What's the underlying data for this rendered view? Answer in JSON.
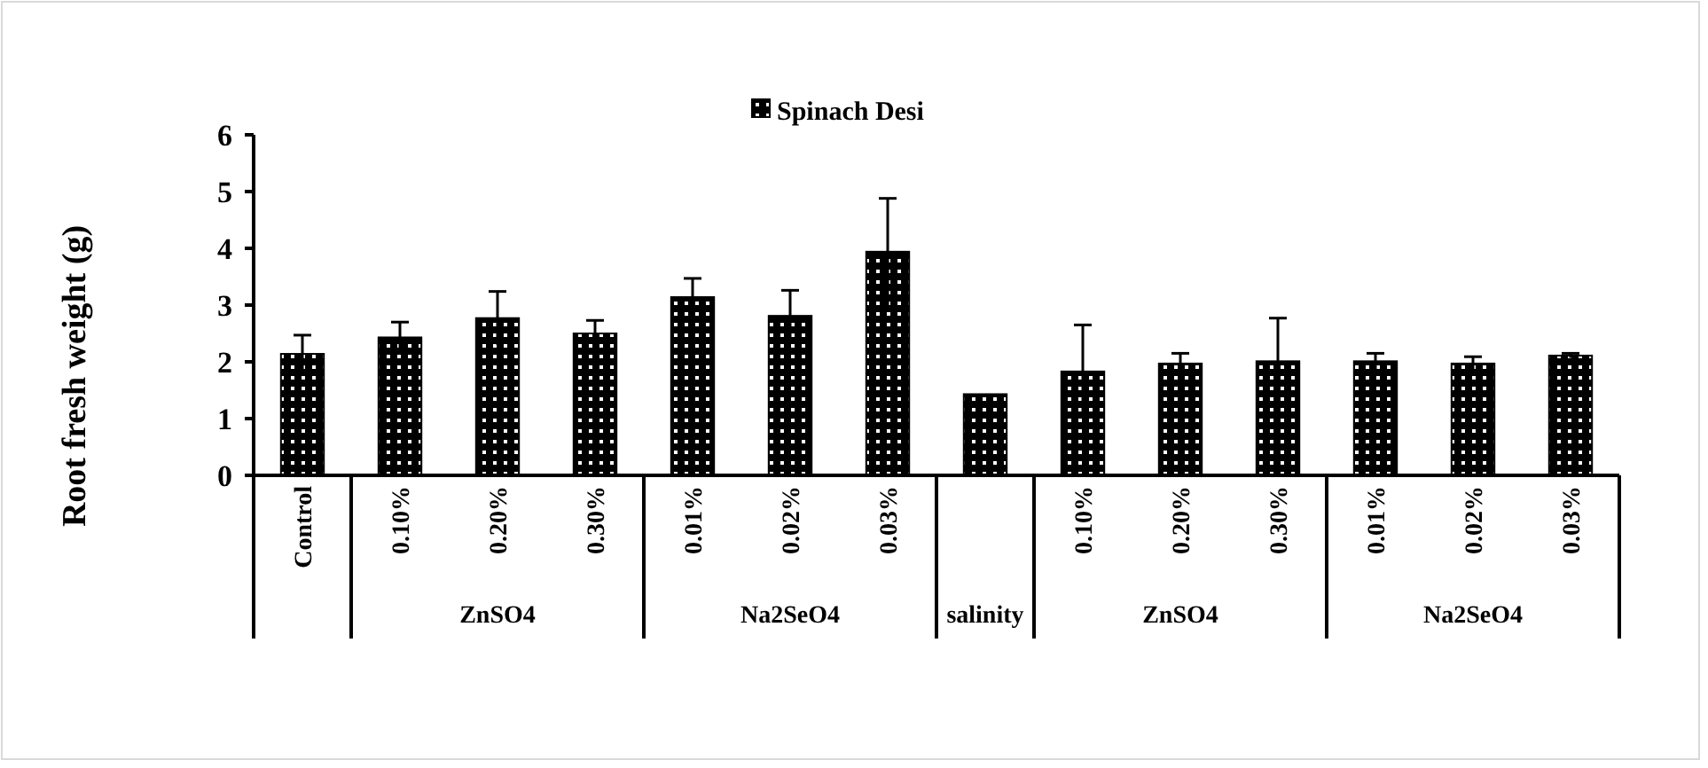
{
  "chart_data": {
    "type": "bar",
    "ylabel": "Root fresh weight (g)",
    "categories": [
      "Control",
      "0.10%",
      "0.20%",
      "0.30%",
      "0.01%",
      "0.02%",
      "0.03%",
      null,
      "0.10%",
      "0.20%",
      "0.30%",
      "0.01%",
      "0.02%",
      "0.03%"
    ],
    "series": [
      {
        "name": "Spinach Desi",
        "color": "#000000",
        "values": [
          2.14,
          2.43,
          2.77,
          2.5,
          3.14,
          2.81,
          3.94,
          1.43,
          1.83,
          1.97,
          2.01,
          2.01,
          1.97,
          2.11
        ],
        "errors": [
          0.33,
          0.27,
          0.47,
          0.23,
          0.33,
          0.45,
          0.94,
          null,
          0.82,
          0.18,
          0.76,
          0.14,
          0.12,
          0.04
        ]
      }
    ],
    "annotations": [
      "ZnSO4",
      "Na2SeO4",
      "salinity",
      "ZnSO4",
      "Na2SeO4"
    ],
    "ylim": [
      0,
      6
    ],
    "yticks": [
      0,
      1,
      2,
      3,
      4,
      5,
      6
    ],
    "legend": "top",
    "grid": false
  }
}
